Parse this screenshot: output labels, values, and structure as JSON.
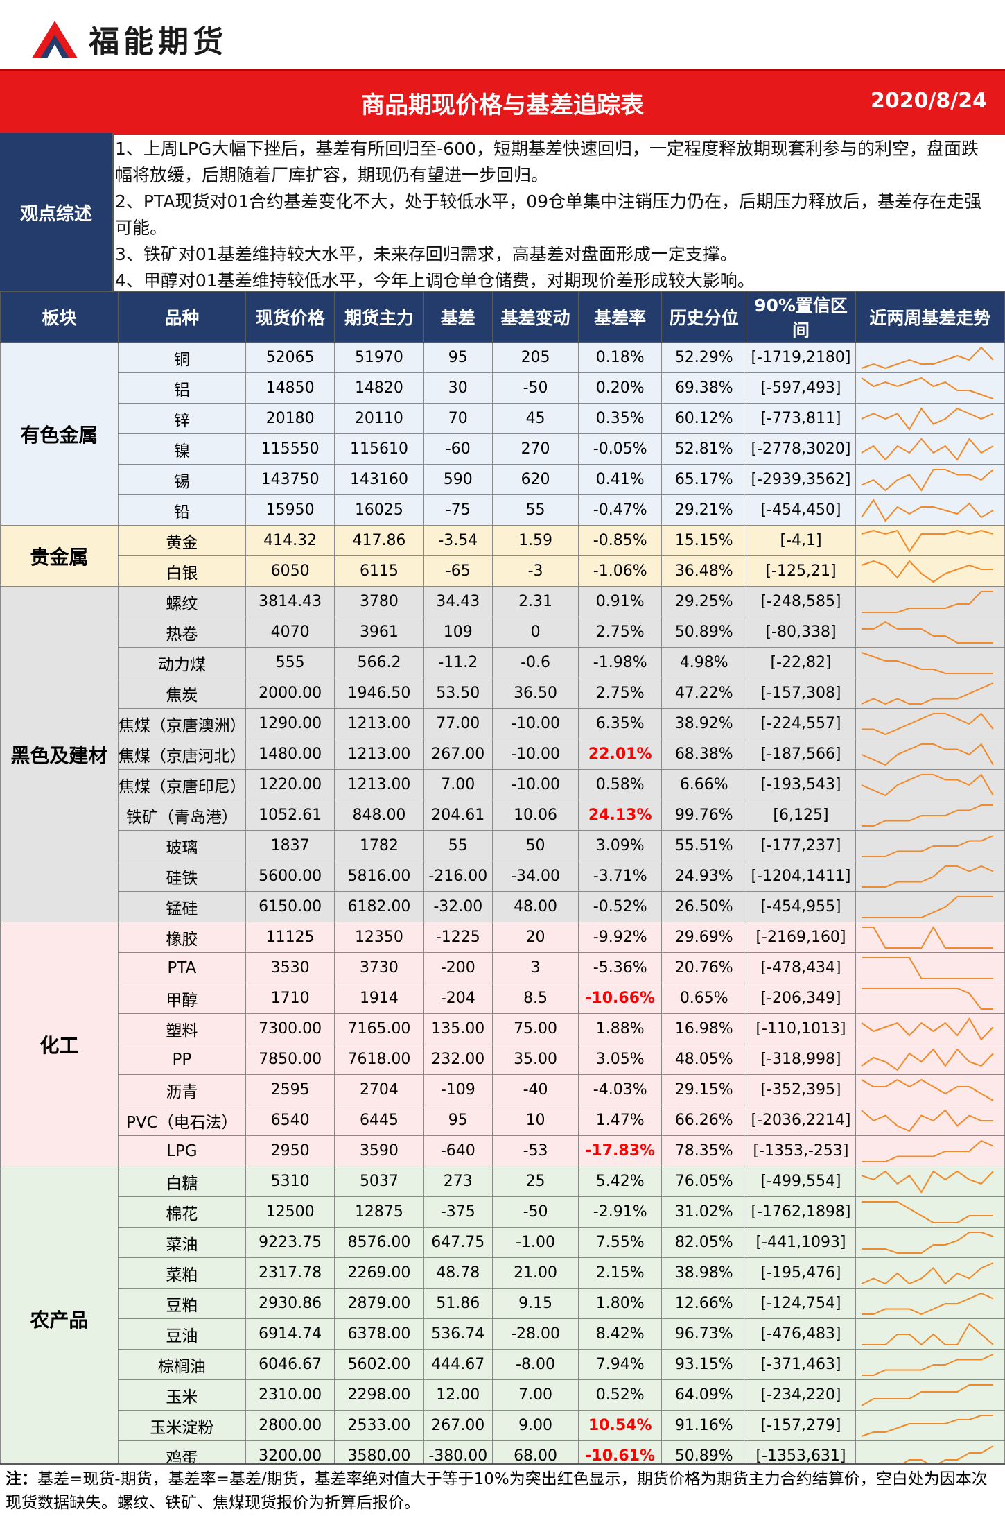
{
  "brand": {
    "name": "福能期货",
    "logo_icon": "triangle-logo-icon"
  },
  "header": {
    "title": "商品期现价格与基差追踪表",
    "date": "2020/8/24"
  },
  "colors": {
    "title_bg": "#e6181a",
    "header_bg": "#243c6b",
    "spark": "#f08a2a",
    "highlight": "#ff0000"
  },
  "opinion": {
    "label": "观点综述",
    "lines": [
      "1、上周LPG大幅下挫后，基差有所回归至-600，短期基差快速回归，一定程度释放期现套利参与的利空，盘面跌幅将放缓，后期随着厂库扩容，期现仍有望进一步回归。",
      "2、PTA现货对01合约基差变化不大，处于较低水平，09仓单集中注销压力仍在，后期压力释放后，基差存在走强可能。",
      "3、铁矿对01基差维持较大水平，未来存回归需求，高基差对盘面形成一定支撑。",
      "4、甲醇对01基差维持较低水平，今年上调仓单仓储费，对期现价差形成较大影响。"
    ]
  },
  "columns": [
    "板块",
    "品种",
    "现货价格",
    "期货主力",
    "基差",
    "基差变动",
    "基差率",
    "历史分位",
    "90%置信区间",
    "近两周基差走势"
  ],
  "groups": [
    {
      "sector": "有色金属",
      "cls": "g-nonferrous",
      "rows": [
        [
          "铜",
          "52065",
          "51970",
          "95",
          "205",
          "0.18%",
          "52.29%",
          "[-1719,2180]"
        ],
        [
          "铝",
          "14850",
          "14820",
          "30",
          "-50",
          "0.20%",
          "69.38%",
          "[-597,493]"
        ],
        [
          "锌",
          "20180",
          "20110",
          "70",
          "45",
          "0.35%",
          "60.12%",
          "[-773,811]"
        ],
        [
          "镍",
          "115550",
          "115610",
          "-60",
          "270",
          "-0.05%",
          "52.81%",
          "[-2778,3020]"
        ],
        [
          "锡",
          "143750",
          "143160",
          "590",
          "620",
          "0.41%",
          "65.17%",
          "[-2939,3562]"
        ],
        [
          "铅",
          "15950",
          "16025",
          "-75",
          "55",
          "-0.47%",
          "29.21%",
          "[-454,450]"
        ]
      ]
    },
    {
      "sector": "贵金属",
      "cls": "g-precious",
      "rows": [
        [
          "黄金",
          "414.32",
          "417.86",
          "-3.54",
          "1.59",
          "-0.85%",
          "15.15%",
          "[-4,1]"
        ],
        [
          "白银",
          "6050",
          "6115",
          "-65",
          "-3",
          "-1.06%",
          "36.48%",
          "[-125,21]"
        ]
      ]
    },
    {
      "sector": "黑色及建材",
      "cls": "g-ferrous",
      "rows": [
        [
          "螺纹",
          "3814.43",
          "3780",
          "34.43",
          "2.31",
          "0.91%",
          "29.25%",
          "[-248,585]"
        ],
        [
          "热卷",
          "4070",
          "3961",
          "109",
          "0",
          "2.75%",
          "50.89%",
          "[-80,338]"
        ],
        [
          "动力煤",
          "555",
          "566.2",
          "-11.2",
          "-0.6",
          "-1.98%",
          "4.98%",
          "[-22,82]"
        ],
        [
          "焦炭",
          "2000.00",
          "1946.50",
          "53.50",
          "36.50",
          "2.75%",
          "47.22%",
          "[-157,308]"
        ],
        [
          "焦煤（京唐澳洲）",
          "1290.00",
          "1213.00",
          "77.00",
          "-10.00",
          "6.35%",
          "38.92%",
          "[-224,557]"
        ],
        [
          "焦煤（京唐河北）",
          "1480.00",
          "1213.00",
          "267.00",
          "-10.00",
          "22.01%",
          "68.38%",
          "[-187,566]"
        ],
        [
          "焦煤（京唐印尼）",
          "1220.00",
          "1213.00",
          "7.00",
          "-10.00",
          "0.58%",
          "6.66%",
          "[-193,543]"
        ],
        [
          "铁矿（青岛港）",
          "1052.61",
          "848.00",
          "204.61",
          "10.06",
          "24.13%",
          "99.76%",
          "[6,125]"
        ],
        [
          "玻璃",
          "1837",
          "1782",
          "55",
          "50",
          "3.09%",
          "55.51%",
          "[-177,237]"
        ],
        [
          "硅铁",
          "5600.00",
          "5816.00",
          "-216.00",
          "-34.00",
          "-3.71%",
          "24.93%",
          "[-1204,1411]"
        ],
        [
          "锰硅",
          "6150.00",
          "6182.00",
          "-32.00",
          "48.00",
          "-0.52%",
          "26.50%",
          "[-454,955]"
        ]
      ]
    },
    {
      "sector": "化工",
      "cls": "g-chem",
      "rows": [
        [
          "橡胶",
          "11125",
          "12350",
          "-1225",
          "20",
          "-9.92%",
          "29.69%",
          "[-2169,160]"
        ],
        [
          "PTA",
          "3530",
          "3730",
          "-200",
          "3",
          "-5.36%",
          "20.76%",
          "[-478,434]"
        ],
        [
          "甲醇",
          "1710",
          "1914",
          "-204",
          "8.5",
          "-10.66%",
          "0.65%",
          "[-206,349]"
        ],
        [
          "塑料",
          "7300.00",
          "7165.00",
          "135.00",
          "75.00",
          "1.88%",
          "16.98%",
          "[-110,1013]"
        ],
        [
          "PP",
          "7850.00",
          "7618.00",
          "232.00",
          "35.00",
          "3.05%",
          "48.05%",
          "[-318,998]"
        ],
        [
          "沥青",
          "2595",
          "2704",
          "-109",
          "-40",
          "-4.03%",
          "29.15%",
          "[-352,395]"
        ],
        [
          "PVC（电石法）",
          "6540",
          "6445",
          "95",
          "10",
          "1.47%",
          "66.26%",
          "[-2036,2214]"
        ],
        [
          "LPG",
          "2950",
          "3590",
          "-640",
          "-53",
          "-17.83%",
          "78.35%",
          "[-1353,-253]"
        ]
      ]
    },
    {
      "sector": "农产品",
      "cls": "g-agri",
      "rows": [
        [
          "白糖",
          "5310",
          "5037",
          "273",
          "25",
          "5.42%",
          "76.05%",
          "[-499,554]"
        ],
        [
          "棉花",
          "12500",
          "12875",
          "-375",
          "-50",
          "-2.91%",
          "31.02%",
          "[-1762,1898]"
        ],
        [
          "菜油",
          "9223.75",
          "8576.00",
          "647.75",
          "-1.00",
          "7.55%",
          "82.05%",
          "[-441,1093]"
        ],
        [
          "菜粕",
          "2317.78",
          "2269.00",
          "48.78",
          "21.00",
          "2.15%",
          "38.98%",
          "[-195,476]"
        ],
        [
          "豆粕",
          "2930.86",
          "2879.00",
          "51.86",
          "9.15",
          "1.80%",
          "12.66%",
          "[-124,754]"
        ],
        [
          "豆油",
          "6914.74",
          "6378.00",
          "536.74",
          "-28.00",
          "8.42%",
          "96.73%",
          "[-476,483]"
        ],
        [
          "棕榈油",
          "6046.67",
          "5602.00",
          "444.67",
          "-8.00",
          "7.94%",
          "93.15%",
          "[-371,463]"
        ],
        [
          "玉米",
          "2310.00",
          "2298.00",
          "12.00",
          "7.00",
          "0.52%",
          "64.09%",
          "[-234,220]"
        ],
        [
          "玉米淀粉",
          "2800.00",
          "2533.00",
          "267.00",
          "9.00",
          "10.54%",
          "91.16%",
          "[-157,279]"
        ],
        [
          "鸡蛋",
          "3200.00",
          "3580.00",
          "-380.00",
          "68.00",
          "-10.61%",
          "50.89%",
          "[-1353,631]"
        ]
      ]
    }
  ],
  "sparklines": [
    [
      3,
      4,
      3,
      4,
      5,
      4,
      4,
      5,
      6,
      5,
      8,
      5
    ],
    [
      7,
      5,
      6,
      5,
      6,
      7,
      5,
      6,
      4,
      4,
      3,
      2
    ],
    [
      5,
      6,
      5,
      6,
      3,
      7,
      4,
      5,
      7,
      6,
      5,
      6
    ],
    [
      4,
      5,
      3,
      5,
      4,
      6,
      4,
      5,
      3,
      6,
      4,
      5
    ],
    [
      3,
      4,
      2,
      4,
      5,
      2,
      6,
      6,
      5,
      5,
      4,
      6
    ],
    [
      2,
      7,
      1,
      5,
      3,
      5,
      5,
      4,
      3,
      6,
      2,
      4
    ],
    [
      6,
      7,
      6,
      7,
      1,
      6,
      6,
      6,
      7,
      6,
      7,
      6
    ],
    [
      5,
      6,
      5,
      2,
      6,
      3,
      1,
      3,
      4,
      5,
      4,
      4
    ],
    [
      1,
      1,
      1,
      1,
      2,
      2,
      2,
      2,
      3,
      3,
      6,
      6
    ],
    [
      5,
      5,
      6,
      5,
      5,
      5,
      4,
      4,
      3,
      3,
      3,
      3
    ],
    [
      6,
      5,
      4,
      4,
      3,
      2,
      2,
      1,
      1,
      1,
      1,
      1
    ],
    [
      2,
      3,
      2,
      3,
      2,
      2,
      3,
      3,
      3,
      4,
      5,
      6
    ],
    [
      3,
      3,
      2,
      3,
      4,
      5,
      6,
      6,
      5,
      4,
      6,
      3
    ],
    [
      4,
      3,
      2,
      4,
      5,
      6,
      6,
      5,
      5,
      4,
      6,
      2
    ],
    [
      4,
      3,
      2,
      4,
      5,
      6,
      6,
      5,
      5,
      4,
      6,
      2
    ],
    [
      1,
      1,
      2,
      2,
      2,
      3,
      3,
      3,
      4,
      4,
      5,
      5
    ],
    [
      2,
      2,
      2,
      3,
      3,
      3,
      4,
      4,
      4,
      5,
      5,
      6
    ],
    [
      1,
      1,
      1,
      2,
      2,
      2,
      3,
      5,
      5,
      4,
      5,
      4
    ],
    [
      1,
      1,
      1,
      1,
      1,
      1,
      2,
      3,
      5,
      5,
      5,
      5
    ],
    [
      6,
      6,
      2,
      2,
      2,
      2,
      6,
      2,
      2,
      2,
      2,
      2
    ],
    [
      4,
      4,
      4,
      4,
      4,
      2,
      2,
      2,
      2,
      2,
      2,
      2
    ],
    [
      5,
      5,
      5,
      5,
      5,
      5,
      5,
      5,
      5,
      4,
      1,
      1
    ],
    [
      5,
      3,
      4,
      5,
      2,
      5,
      3,
      5,
      2,
      6,
      1,
      4
    ],
    [
      2,
      4,
      3,
      1,
      5,
      3,
      6,
      2,
      6,
      3,
      2,
      5
    ],
    [
      5,
      4,
      4,
      5,
      4,
      5,
      4,
      3,
      4,
      4,
      3,
      2
    ],
    [
      5,
      3,
      4,
      2,
      1,
      4,
      3,
      5,
      2,
      4,
      3,
      3
    ],
    [
      2,
      2,
      2,
      3,
      3,
      3,
      3,
      4,
      4,
      4,
      6,
      5
    ],
    [
      5,
      4,
      6,
      3,
      5,
      1,
      6,
      4,
      6,
      4,
      3,
      6
    ],
    [
      5,
      5,
      5,
      5,
      4,
      3,
      2,
      2,
      2,
      3,
      3,
      3
    ],
    [
      2,
      2,
      2,
      1,
      1,
      1,
      3,
      3,
      4,
      6,
      6,
      5
    ],
    [
      2,
      3,
      2,
      4,
      2,
      3,
      5,
      2,
      4,
      3,
      5,
      6
    ],
    [
      2,
      2,
      3,
      3,
      3,
      2,
      3,
      4,
      4,
      5,
      6,
      5
    ],
    [
      4,
      4,
      4,
      5,
      5,
      4,
      5,
      4,
      4,
      6,
      5,
      4
    ],
    [
      2,
      2,
      3,
      3,
      3,
      3,
      4,
      4,
      5,
      5,
      5,
      6
    ],
    [
      2,
      3,
      3,
      3,
      3,
      4,
      4,
      4,
      4,
      5,
      5,
      5
    ],
    [
      1,
      2,
      2,
      3,
      4,
      4,
      4,
      4,
      5,
      5,
      6,
      6
    ],
    [
      3,
      3,
      3,
      3,
      4,
      4,
      3,
      4,
      4,
      5,
      5,
      6
    ]
  ],
  "footnote": "注：基差=现货-期货，基差率=基差/期货，基差率绝对值大于等于10%为突出红色显示，期货价格为期货主力合约结算价，空白处为因本次现货数据缺失。螺纹、铁矿、焦煤现货报价为折算后报价。",
  "footnote_prefix": "注："
}
